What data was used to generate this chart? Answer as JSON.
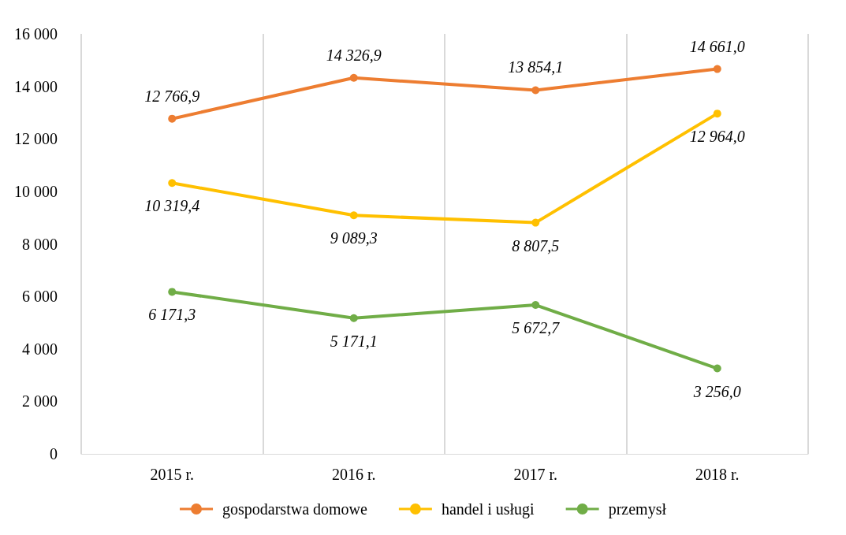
{
  "chart_data": {
    "type": "line",
    "categories": [
      "2015 r.",
      "2016 r.",
      "2017 r.",
      "2018 r."
    ],
    "series": [
      {
        "name": "gospodarstwa domowe",
        "color": "#ed7d31",
        "values": [
          12766.9,
          14326.9,
          13854.1,
          14661.0
        ],
        "value_labels": [
          "12 766,9",
          "14 326,9",
          "13 854,1",
          "14 661,0"
        ]
      },
      {
        "name": "handel i usługi",
        "color": "#ffc000",
        "values": [
          10319.4,
          9089.3,
          8807.5,
          12964.0
        ],
        "value_labels": [
          "10 319,4",
          "9 089,3",
          "8 807,5",
          "12 964,0"
        ]
      },
      {
        "name": "przemysł",
        "color": "#70ad47",
        "values": [
          6171.3,
          5171.1,
          5672.7,
          3256.0
        ],
        "value_labels": [
          "6 171,3",
          "5 171,1",
          "5 672,7",
          "3 256,0"
        ]
      }
    ],
    "ylim": [
      0,
      16000
    ],
    "yticks": [
      {
        "value": 0,
        "label": "0"
      },
      {
        "value": 2000,
        "label": "2 000"
      },
      {
        "value": 4000,
        "label": "4 000"
      },
      {
        "value": 6000,
        "label": "6 000"
      },
      {
        "value": 8000,
        "label": "8 000"
      },
      {
        "value": 10000,
        "label": "10 000"
      },
      {
        "value": 12000,
        "label": "12 000"
      },
      {
        "value": 14000,
        "label": "14 000"
      },
      {
        "value": 16000,
        "label": "16 000"
      }
    ],
    "grid": "x",
    "legend": "bottom",
    "marker": "circle",
    "line_style": "solid"
  }
}
